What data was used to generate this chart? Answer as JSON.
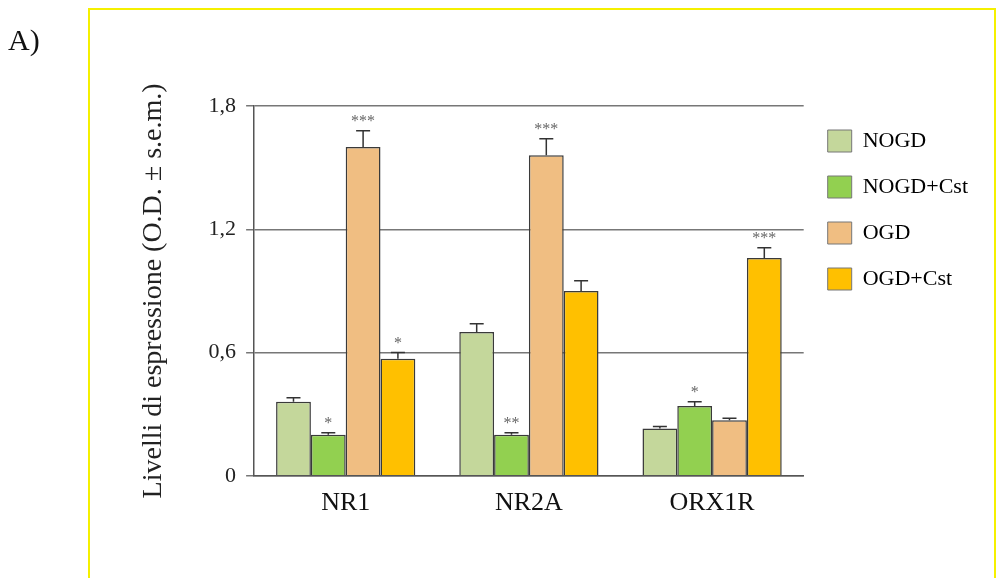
{
  "chart_data": {
    "type": "bar",
    "ylabel": "Livelli di espressione (O.D. ± s.e.m.)",
    "categories": [
      "NR1",
      "NR2A",
      "ORX1R"
    ],
    "series": [
      {
        "name": "NOGD",
        "color": "#c4d79b",
        "values": [
          0.36,
          0.7,
          0.23
        ],
        "errors": [
          0.02,
          0.04,
          0.01
        ]
      },
      {
        "name": "NOGD+Cst",
        "color": "#92d050",
        "values": [
          0.2,
          0.2,
          0.34
        ],
        "errors": [
          0.01,
          0.01,
          0.02
        ]
      },
      {
        "name": "OGD",
        "color": "#f0be82",
        "values": [
          1.6,
          1.56,
          0.27
        ],
        "errors": [
          0.08,
          0.08,
          0.01
        ]
      },
      {
        "name": "OGD+Cst",
        "color": "#ffc000",
        "values": [
          0.57,
          0.9,
          1.06
        ],
        "errors": [
          0.03,
          0.05,
          0.05
        ]
      }
    ],
    "ylim": [
      0,
      1.8
    ],
    "yticks": [
      {
        "value": 0,
        "label": "0"
      },
      {
        "value": 0.6,
        "label": "0,6"
      },
      {
        "value": 1.2,
        "label": "1,2"
      },
      {
        "value": 1.8,
        "label": "1,8"
      }
    ],
    "grid": "y",
    "legend": "right",
    "annotations": [
      "A)",
      {
        "text": "*",
        "x": "NR1",
        "y": 0.2
      },
      {
        "text": "***",
        "x": "NR1",
        "y": 1.6
      },
      {
        "text": "**",
        "x": "NR2A",
        "y": 0.2
      },
      {
        "text": "***",
        "x": "NR2A",
        "y": 1.56
      },
      {
        "text": "*",
        "x": "ORX1R",
        "y": 0.34
      },
      "*",
      "***"
    ]
  }
}
